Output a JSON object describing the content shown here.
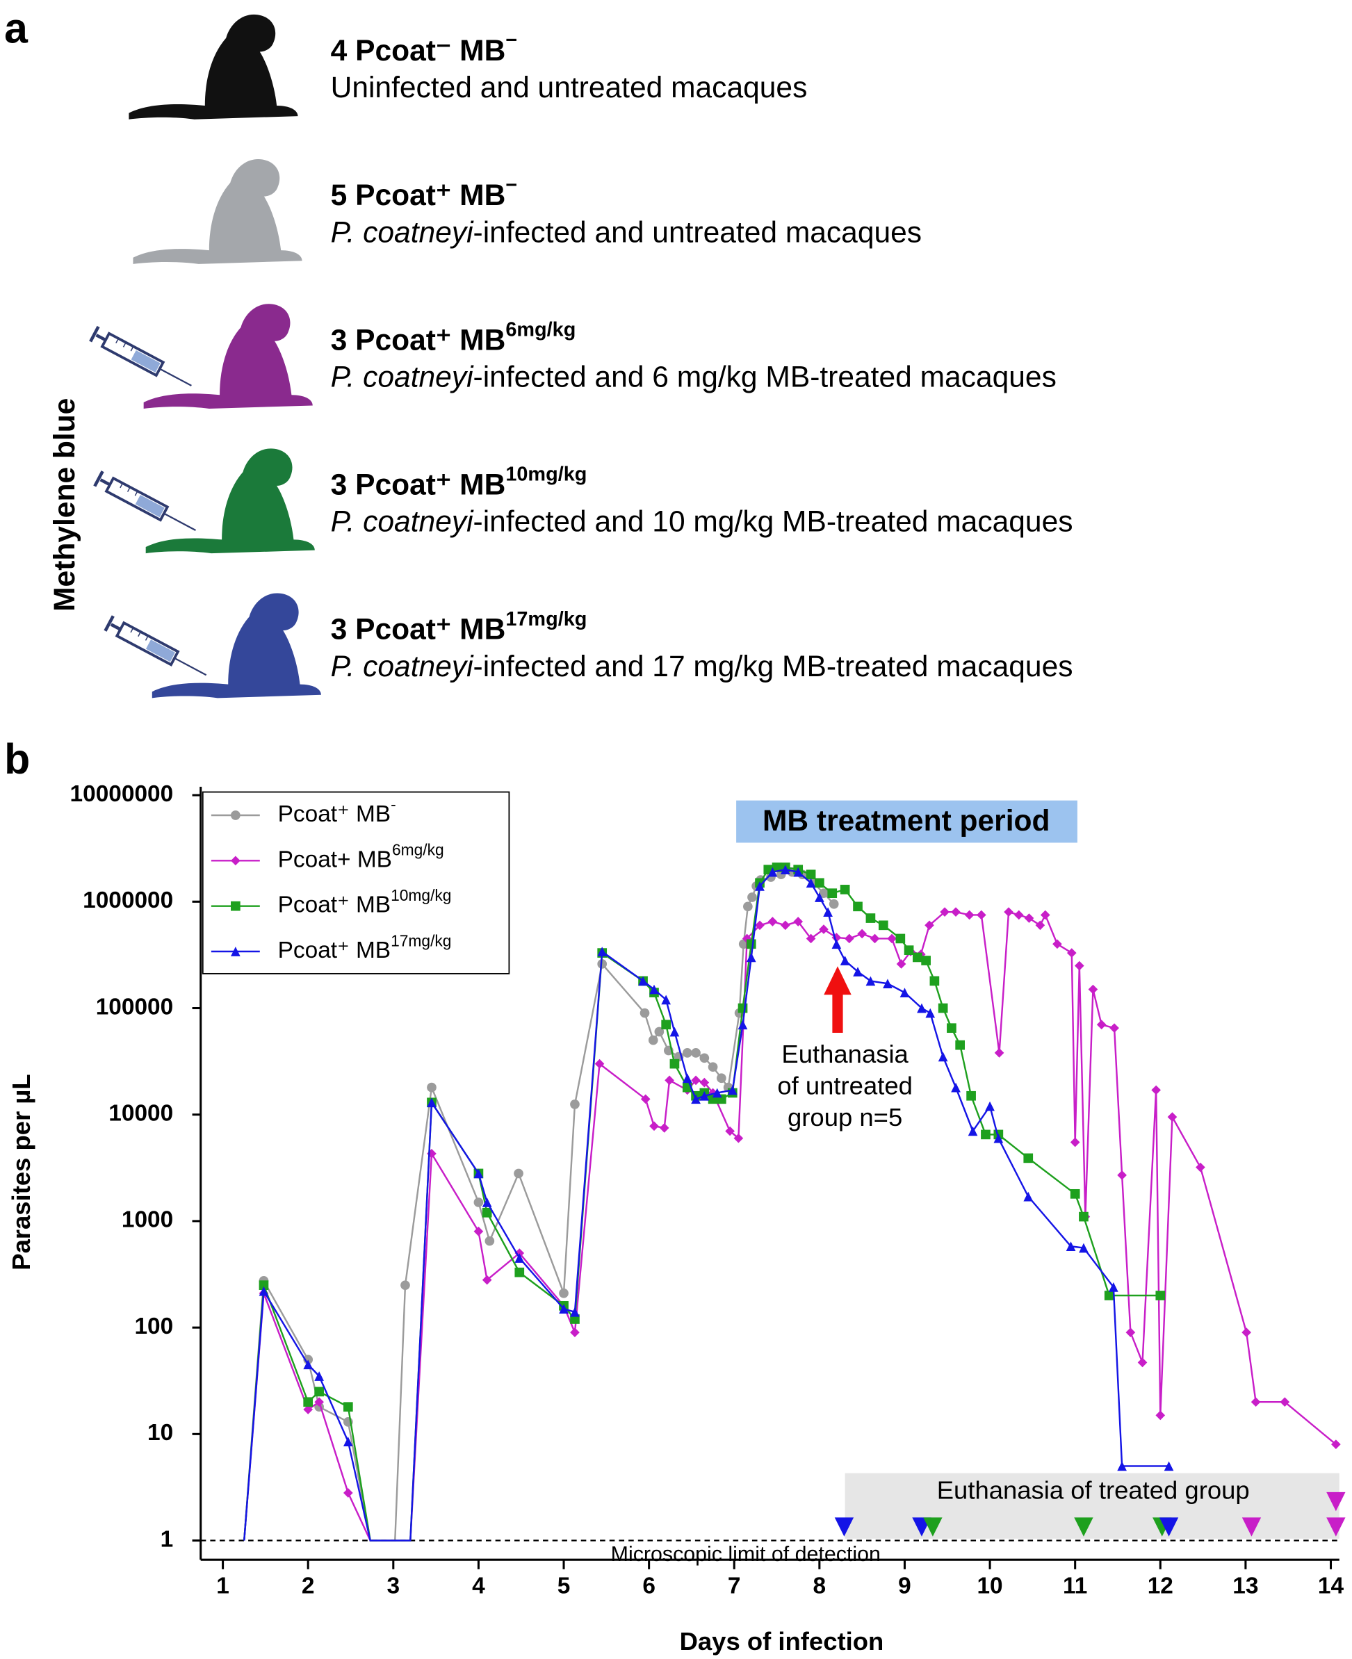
{
  "panel_a": {
    "label": "a",
    "side_label": "Methylene blue",
    "rows": [
      {
        "heading": "4 Pcoat⁻ MB",
        "heading_sup": "−",
        "description": "Uninfected and untreated macaques"
      },
      {
        "heading": "5 Pcoat⁺ MB",
        "heading_sup": "−",
        "description_italic": "P. coatneyi",
        "description": "-infected and untreated macaques"
      },
      {
        "heading": "3 Pcoat⁺ MB",
        "heading_sup": "6mg/kg",
        "description_italic": "P. coatneyi",
        "description": "-infected and 6 mg/kg MB-treated macaques"
      },
      {
        "heading": "3 Pcoat⁺ MB",
        "heading_sup": "10mg/kg",
        "description_italic": "P. coatneyi",
        "description": "-infected and 10 mg/kg MB-treated macaques"
      },
      {
        "heading": "3 Pcoat⁺ MB",
        "heading_sup": "17mg/kg",
        "description_italic": "P. coatneyi",
        "description": "-infected and 17 mg/kg MB-treated macaques"
      }
    ]
  },
  "chart_data": {
    "type": "line",
    "panel_label": "b",
    "x_label": "Days of infection",
    "y_label": "Parasites per µL",
    "yscale": "log",
    "xlim": [
      0.74,
      14.1
    ],
    "ylim": [
      0.66,
      10000000
    ],
    "xticks": [
      1,
      2,
      3,
      4,
      5,
      6,
      7,
      8,
      9,
      10,
      11,
      12,
      13,
      14
    ],
    "yticks": [
      1,
      10,
      100,
      1000,
      10000,
      100000,
      1000000,
      10000000
    ],
    "detection_limit": 1,
    "detection_limit_label": "Microscopic limit of detection",
    "treatment_label": "MB treatment period",
    "untreated_euthanasia_note": [
      "Euthanasia",
      "of untreated",
      "group n=5"
    ],
    "treated_euthanasia_label": "Euthanasia of treated group",
    "euthanasia_markers": [
      {
        "x": 8.29,
        "color": "#1414e6"
      },
      {
        "x": 9.2,
        "color": "#1414e6"
      },
      {
        "x": 9.33,
        "color": "#1ea01e"
      },
      {
        "x": 11.1,
        "color": "#1ea01e"
      },
      {
        "x": 12.02,
        "color": "#1ea01e"
      },
      {
        "x": 12.1,
        "color": "#1414e6"
      },
      {
        "x": 13.07,
        "color": "#c81ec8"
      },
      {
        "x": 14.06,
        "color": "#c81ec8"
      },
      {
        "x": 14.06,
        "color": "#c81ec8"
      }
    ],
    "legend": "upper left",
    "series": [
      {
        "name": "Pcoat⁺ MB",
        "name_sup": "-",
        "color": "#9b9b9b",
        "marker": "circle",
        "x": [
          1.25,
          1.48,
          2.0,
          2.13,
          2.47,
          2.73,
          3.02,
          3.14,
          3.45,
          4.0,
          4.13,
          4.47,
          5.0,
          5.13,
          5.45,
          5.95,
          6.05,
          6.12,
          6.23,
          6.35,
          6.45,
          6.55,
          6.65,
          6.75,
          6.85,
          6.93,
          7.06,
          7.11,
          7.16,
          7.21,
          7.26,
          7.31,
          7.43,
          7.55,
          7.68,
          7.8,
          7.93,
          8.05,
          8.17
        ],
        "values": [
          1,
          275,
          50,
          18,
          13,
          1,
          1,
          250,
          18000,
          1500,
          650,
          2800,
          210,
          12500,
          260000,
          90000,
          50000,
          60000,
          40000,
          35000,
          38000,
          38000,
          34000,
          28000,
          22000,
          18000,
          90000,
          400000,
          900000,
          1100000,
          1400000,
          1600000,
          1700000,
          1800000,
          1900000,
          1800000,
          1500000,
          1200000,
          950000
        ]
      },
      {
        "name": "Pcoat+ MB",
        "name_sup": "6mg/kg",
        "color": "#c81ec8",
        "marker": "diamond",
        "x": [
          1.25,
          1.48,
          2.0,
          2.13,
          2.47,
          2.73,
          3.2,
          3.45,
          4.0,
          4.1,
          4.48,
          5.0,
          5.13,
          5.42,
          5.96,
          6.06,
          6.18,
          6.24,
          6.45,
          6.55,
          6.65,
          6.75,
          6.95,
          7.05,
          7.15,
          7.3,
          7.45,
          7.6,
          7.75,
          7.9,
          8.05,
          8.2,
          8.35,
          8.5,
          8.65,
          8.85,
          8.96,
          9.07,
          9.19,
          9.29,
          9.47,
          9.6,
          9.76,
          9.9,
          10.11,
          10.22,
          10.34,
          10.46,
          10.59,
          10.65,
          10.79,
          10.96,
          11.0,
          11.05,
          11.12,
          11.21,
          11.31,
          11.46,
          11.55,
          11.65,
          11.79,
          11.95,
          12.0,
          12.14,
          12.47,
          13.01,
          13.12,
          13.46,
          14.06
        ],
        "values": [
          1,
          210,
          17,
          20,
          2.8,
          1,
          1,
          4300,
          800,
          280,
          500,
          160,
          90,
          30000,
          14000,
          7800,
          7500,
          21000,
          17000,
          21000,
          20000,
          16000,
          7000,
          6000,
          450000,
          600000,
          650000,
          600000,
          650000,
          450000,
          550000,
          460000,
          450000,
          500000,
          450000,
          450000,
          260000,
          340000,
          320000,
          600000,
          800000,
          800000,
          750000,
          750000,
          38000,
          800000,
          750000,
          700000,
          600000,
          750000,
          400000,
          330000,
          5500,
          250000,
          1100,
          150000,
          70000,
          65000,
          2700,
          90,
          47,
          17000,
          15,
          9500,
          3200,
          90,
          20,
          20,
          8
        ]
      },
      {
        "name": "Pcoat⁺ MB",
        "name_sup": "10mg/kg",
        "color": "#1ea01e",
        "marker": "square",
        "x": [
          1.25,
          1.48,
          2.0,
          2.13,
          2.47,
          2.73,
          3.2,
          3.45,
          4.0,
          4.1,
          4.48,
          5.0,
          5.13,
          5.45,
          5.93,
          6.06,
          6.2,
          6.3,
          6.45,
          6.55,
          6.65,
          6.75,
          6.85,
          6.98,
          7.1,
          7.2,
          7.3,
          7.4,
          7.5,
          7.6,
          7.75,
          7.9,
          8.0,
          8.15,
          8.3,
          8.45,
          8.6,
          8.75,
          8.95,
          9.05,
          9.15,
          9.25,
          9.35,
          9.45,
          9.55,
          9.65,
          9.78,
          9.95,
          10.1,
          10.45,
          11.0,
          11.1,
          11.4,
          12.0
        ],
        "values": [
          1,
          250,
          20,
          25,
          18,
          1,
          1,
          13000,
          2800,
          1200,
          330,
          160,
          120,
          330000,
          180000,
          140000,
          70000,
          30000,
          18000,
          15000,
          16000,
          14000,
          14000,
          16000,
          100000,
          400000,
          1500000,
          2000000,
          2100000,
          2100000,
          2000000,
          1800000,
          1500000,
          1200000,
          1300000,
          900000,
          700000,
          600000,
          450000,
          350000,
          300000,
          280000,
          180000,
          100000,
          65000,
          45000,
          15000,
          6500,
          6500,
          3900,
          1800,
          1100,
          200,
          200
        ]
      },
      {
        "name": "Pcoat⁺ MB",
        "name_sup": "17mg/kg",
        "color": "#1414e6",
        "marker": "triangle",
        "x": [
          1.25,
          1.48,
          2.0,
          2.13,
          2.47,
          2.73,
          3.2,
          3.45,
          4.0,
          4.1,
          4.48,
          5.0,
          5.13,
          5.45,
          5.93,
          6.06,
          6.2,
          6.3,
          6.45,
          6.55,
          6.65,
          6.8,
          6.98,
          7.1,
          7.2,
          7.3,
          7.45,
          7.6,
          7.75,
          7.9,
          8.0,
          8.1,
          8.2,
          8.3,
          8.45,
          8.6,
          8.8,
          9.0,
          9.2,
          9.3,
          9.45,
          9.6,
          9.8,
          10.0,
          10.1,
          10.45,
          10.95,
          11.1,
          11.45,
          11.55,
          12.1
        ],
        "values": [
          1,
          220,
          45,
          35,
          8.5,
          1,
          1,
          13000,
          2800,
          1500,
          450,
          150,
          140,
          340000,
          180000,
          150000,
          120000,
          60000,
          22000,
          14000,
          15000,
          16000,
          17000,
          70000,
          300000,
          1400000,
          1900000,
          2000000,
          1900000,
          1500000,
          1100000,
          800000,
          400000,
          280000,
          220000,
          180000,
          170000,
          140000,
          100000,
          90000,
          35000,
          18000,
          7000,
          12000,
          6000,
          1700,
          580,
          560,
          240,
          5,
          5
        ]
      }
    ]
  }
}
